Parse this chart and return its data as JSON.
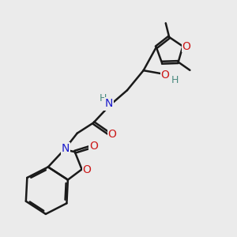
{
  "bg_color": "#ebebeb",
  "bond_color": "#1a1a1a",
  "bond_width": 1.8,
  "atom_colors": {
    "C": "#1a1a1a",
    "H": "#4a8a80",
    "N": "#1a1acc",
    "O": "#cc1a1a"
  },
  "font_size_atom": 10,
  "font_size_small": 9,
  "xlim": [
    0,
    10
  ],
  "ylim": [
    0,
    10
  ]
}
